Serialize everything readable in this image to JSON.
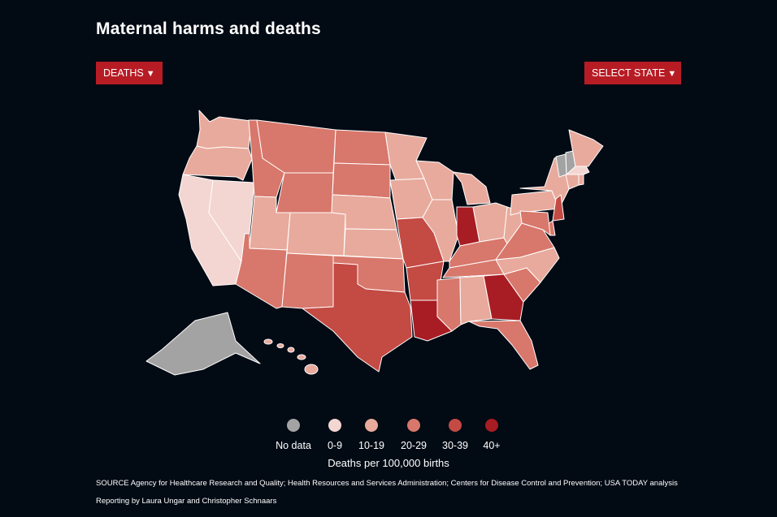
{
  "title": "Maternal harms and deaths",
  "controls": {
    "metric_label": "DEATHS",
    "state_label": "SELECT STATE"
  },
  "legend": {
    "items": [
      {
        "label": "No data",
        "color": "#a3a3a3"
      },
      {
        "label": "0-9",
        "color": "#f3d6d2"
      },
      {
        "label": "10-19",
        "color": "#e8aa9c"
      },
      {
        "label": "20-29",
        "color": "#d8776b"
      },
      {
        "label": "30-39",
        "color": "#c44a44"
      },
      {
        "label": "40+",
        "color": "#a81c23"
      }
    ],
    "title": "Deaths per 100,000 births"
  },
  "chart_data": {
    "type": "choropleth",
    "bins": [
      "No data",
      "0-9",
      "10-19",
      "20-29",
      "30-39",
      "40+"
    ],
    "states": {
      "WA": "10-19",
      "OR": "10-19",
      "CA": "0-9",
      "NV": "0-9",
      "ID": "20-29",
      "MT": "20-29",
      "WY": "20-29",
      "UT": "10-19",
      "AZ": "20-29",
      "CO": "10-19",
      "NM": "20-29",
      "ND": "20-29",
      "SD": "20-29",
      "NE": "10-19",
      "KS": "10-19",
      "OK": "20-29",
      "TX": "30-39",
      "MN": "10-19",
      "IA": "10-19",
      "MO": "30-39",
      "AR": "30-39",
      "LA": "40+",
      "WI": "10-19",
      "IL": "10-19",
      "MI": "10-19",
      "IN": "40+",
      "OH": "10-19",
      "KY": "20-29",
      "TN": "20-29",
      "MS": "20-29",
      "AL": "10-19",
      "GA": "40+",
      "FL": "20-29",
      "SC": "20-29",
      "NC": "10-19",
      "VA": "20-29",
      "WV": "10-19",
      "PA": "10-19",
      "NY": "10-19",
      "NJ": "30-39",
      "DE": "20-29",
      "MD": "20-29",
      "CT": "10-19",
      "RI": "10-19",
      "MA": "0-9",
      "VT": "No data",
      "NH": "No data",
      "ME": "10-19",
      "AK": "No data",
      "HI": "10-19"
    }
  },
  "footer": {
    "source": "SOURCE Agency for Healthcare Research and Quality; Health Resources and Services Administration; Centers for Disease Control and Prevention; USA TODAY analysis",
    "credit": "Reporting by Laura Ungar and Christopher Schnaars"
  }
}
